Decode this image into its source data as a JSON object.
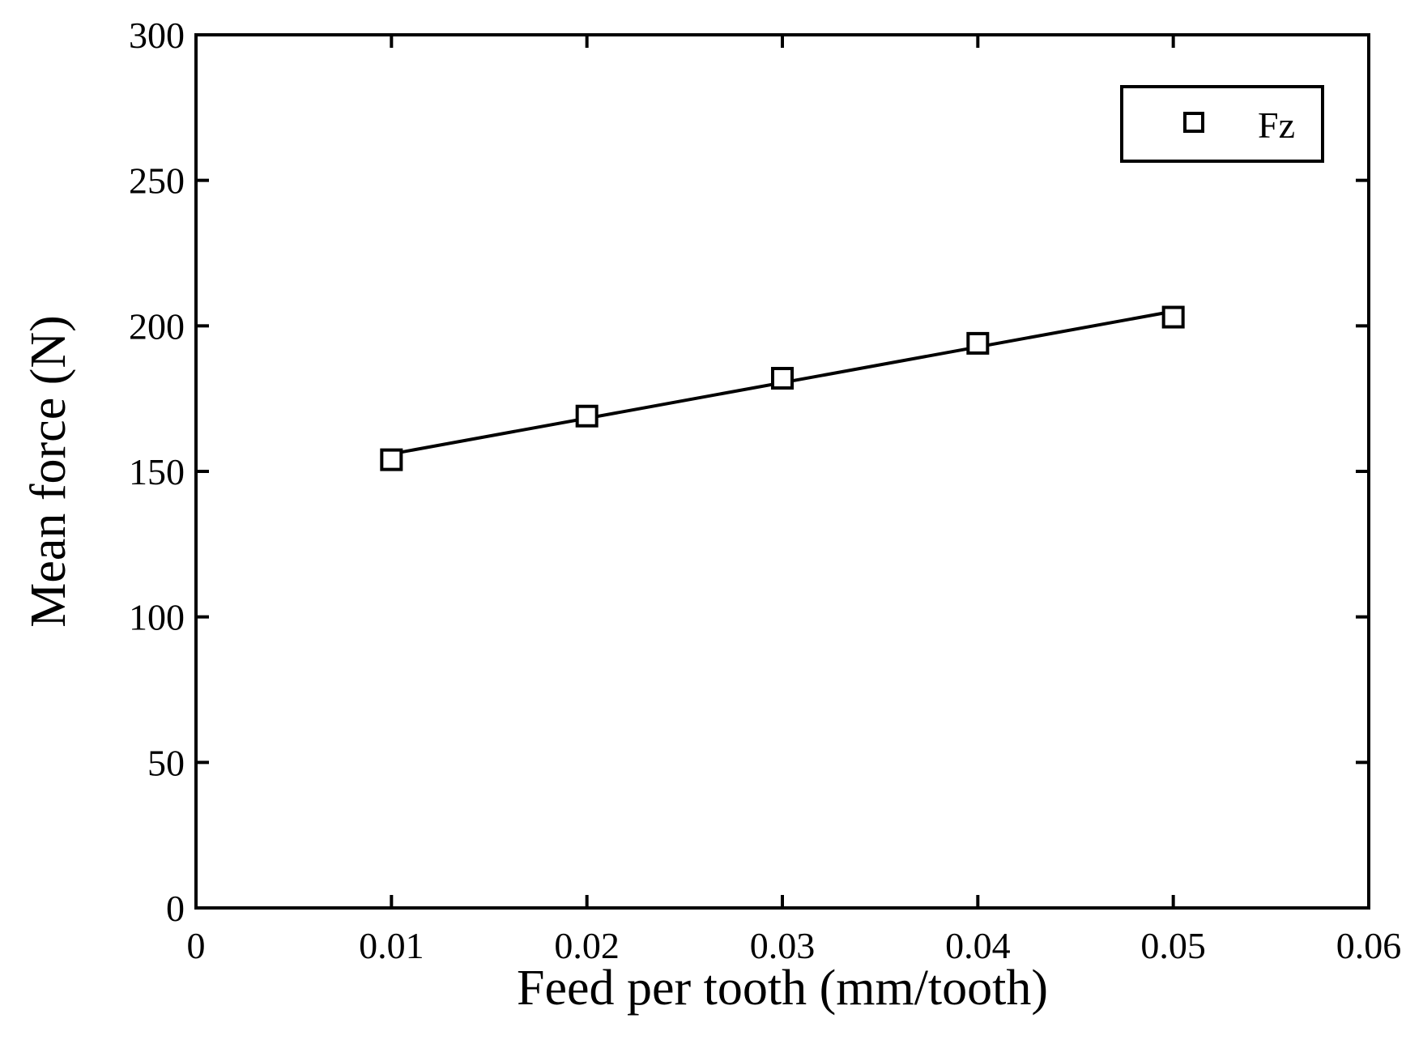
{
  "chart_data": {
    "type": "scatter",
    "title": "",
    "xlabel": "Feed per tooth (mm/tooth)",
    "ylabel": "Mean force (N)",
    "xlim": [
      0,
      0.06
    ],
    "ylim": [
      0,
      300
    ],
    "xticks": [
      0,
      0.01,
      0.02,
      0.03,
      0.04,
      0.05,
      0.06
    ],
    "yticks": [
      0,
      50,
      100,
      150,
      200,
      250,
      300
    ],
    "xtick_labels": [
      "0",
      "0.01",
      "0.02",
      "0.03",
      "0.04",
      "0.05",
      "0.06"
    ],
    "ytick_labels": [
      "0",
      "50",
      "100",
      "150",
      "200",
      "250",
      "300"
    ],
    "grid": false,
    "legend_position": "top-right",
    "series": [
      {
        "name": "Fz",
        "marker": "open-square",
        "x": [
          0.01,
          0.02,
          0.03,
          0.04,
          0.05
        ],
        "y": [
          154,
          169,
          182,
          194,
          203
        ]
      }
    ],
    "fit_line": {
      "x": [
        0.01,
        0.05
      ],
      "y": [
        156,
        205
      ]
    },
    "colors": {
      "axis": "#000000",
      "series": "#000000",
      "background": "#ffffff"
    }
  }
}
